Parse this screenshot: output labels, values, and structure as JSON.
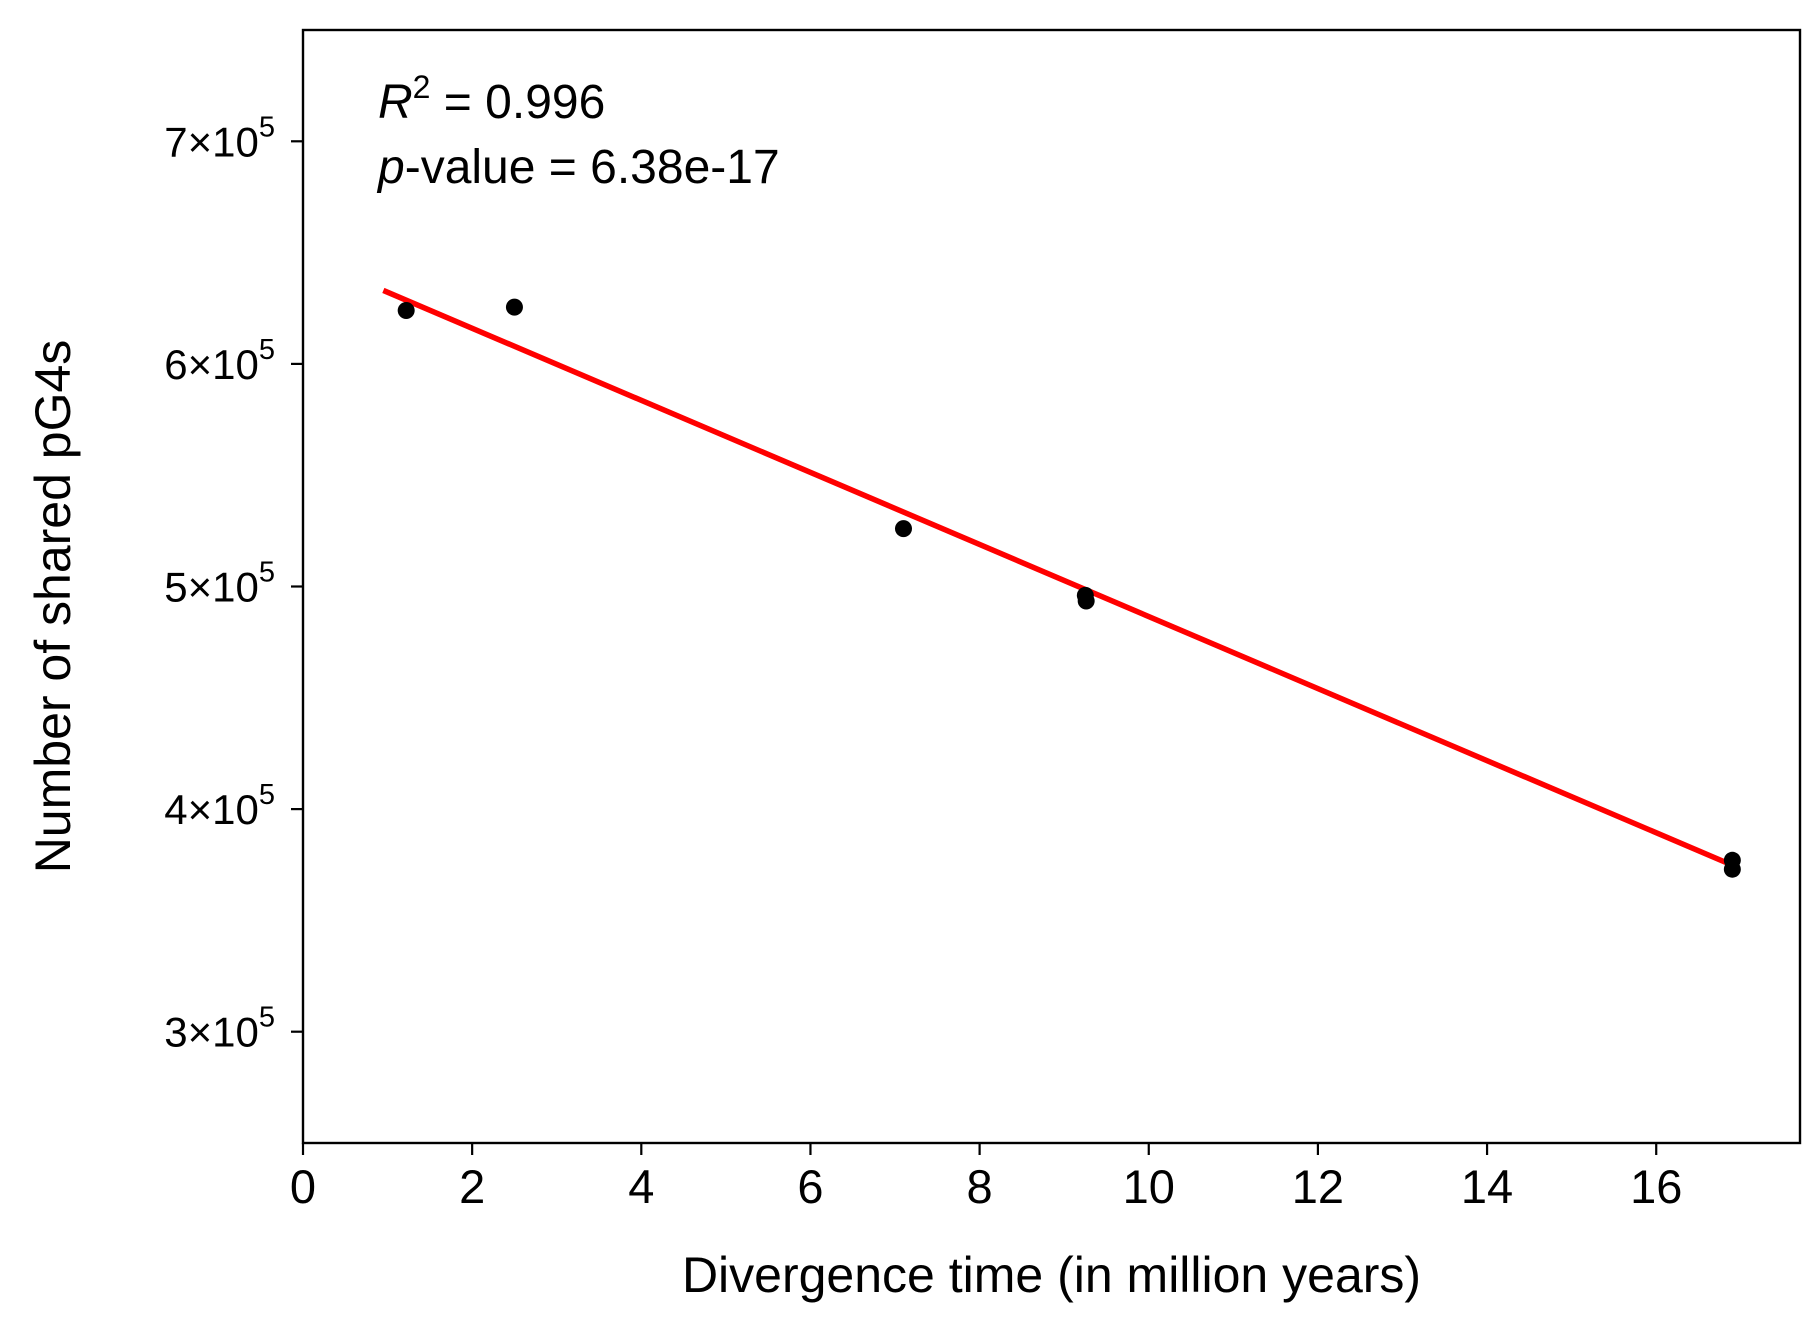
{
  "chart_data": {
    "type": "scatter",
    "title": "",
    "xlabel": "Divergence time (in million years)",
    "ylabel": "Number of shared pG4s",
    "xlim": [
      0,
      17.7
    ],
    "ylim": [
      250000,
      750000
    ],
    "x_ticks": [
      0,
      2,
      4,
      6,
      8,
      10,
      12,
      14,
      16
    ],
    "x_tick_labels": [
      "0",
      "2",
      "4",
      "6",
      "8",
      "10",
      "12",
      "14",
      "16"
    ],
    "y_ticks": [
      300000,
      400000,
      500000,
      600000,
      700000
    ],
    "y_tick_labels": [
      {
        "mantissa": "3",
        "times": "×10",
        "exp": "5"
      },
      {
        "mantissa": "4",
        "times": "×10",
        "exp": "5"
      },
      {
        "mantissa": "5",
        "times": "×10",
        "exp": "5"
      },
      {
        "mantissa": "6",
        "times": "×10",
        "exp": "5"
      },
      {
        "mantissa": "7",
        "times": "×10",
        "exp": "5"
      }
    ],
    "grid": false,
    "points": [
      {
        "x": 1.22,
        "y": 624000
      },
      {
        "x": 2.5,
        "y": 625500
      },
      {
        "x": 7.1,
        "y": 526000
      },
      {
        "x": 9.25,
        "y": 496000
      },
      {
        "x": 9.26,
        "y": 493500
      },
      {
        "x": 16.9,
        "y": 377000
      },
      {
        "x": 16.9,
        "y": 373000
      }
    ],
    "point_color": "#000000",
    "fit_line": {
      "x": [
        0.95,
        16.95
      ],
      "y": [
        633000,
        374000
      ],
      "color": "#ff0000"
    },
    "annotations": {
      "r2_symbol": "R",
      "r2_exp": "2",
      "r2_value": " = 0.996",
      "p_symbol": "p",
      "p_value": "-value = 6.38e-17"
    }
  }
}
